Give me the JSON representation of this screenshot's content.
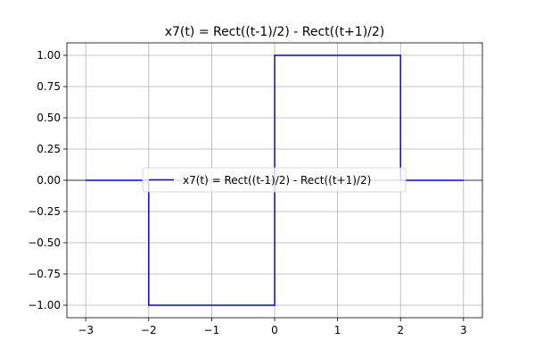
{
  "chart_data": {
    "type": "line",
    "title": "x7(t) = Rect((t-1)/2) - Rect((t+1)/2)",
    "xlabel": "",
    "ylabel": "",
    "xlim": [
      -3.3,
      3.3
    ],
    "ylim": [
      -1.1,
      1.1
    ],
    "x_ticks": [
      -3,
      -2,
      -1,
      0,
      1,
      2,
      3
    ],
    "x_tick_labels": [
      "−3",
      "−2",
      "−1",
      "0",
      "1",
      "2",
      "3"
    ],
    "y_ticks": [
      -1.0,
      -0.75,
      -0.5,
      -0.25,
      0.0,
      0.25,
      0.5,
      0.75,
      1.0
    ],
    "y_tick_labels": [
      "−1.00",
      "−0.75",
      "−0.50",
      "−0.25",
      "0.00",
      "0.25",
      "0.50",
      "0.75",
      "1.00"
    ],
    "grid": true,
    "zero_line": true,
    "legend_position": "center",
    "series": [
      {
        "name": "x7(t) = Rect((t-1)/2) - Rect((t+1)/2)",
        "color": "#0000ff",
        "x": [
          -3,
          -2,
          -2,
          0,
          0,
          2,
          2,
          3
        ],
        "y": [
          0,
          0,
          -1,
          -1,
          1,
          1,
          0,
          0
        ]
      }
    ]
  }
}
